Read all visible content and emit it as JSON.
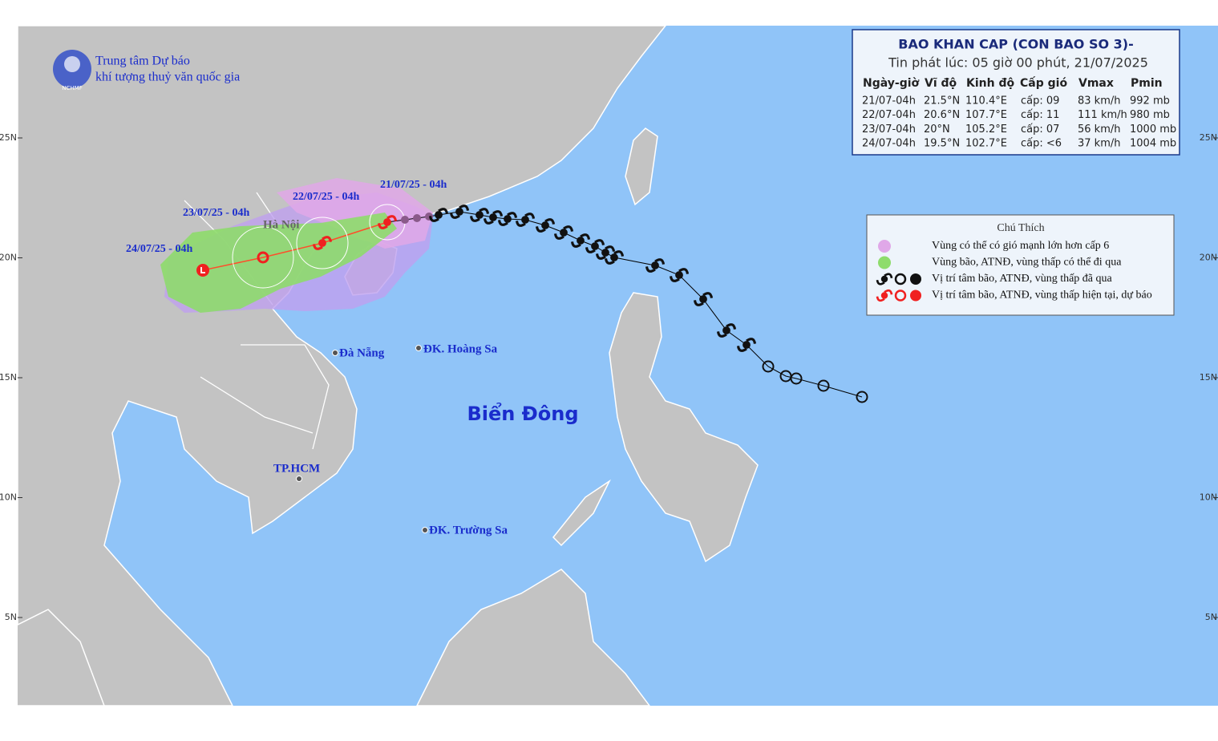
{
  "logo": {
    "line1": "Trung tâm Dự báo",
    "line2": "khí tượng thuỷ văn quốc gia",
    "abbr": "NCHMF"
  },
  "forecast_box": {
    "title": "BAO KHAN CAP (CON BAO SO 3)-",
    "issued": "Tin phát lúc: 05 giờ 00 phút, 21/07/2025",
    "headers": [
      "Ngày-giờ",
      "Vĩ độ",
      "Kinh độ",
      "Cấp gió",
      "Vmax",
      "Pmin"
    ],
    "rows": [
      [
        "21/07-04h",
        "21.5°N",
        "110.4°E",
        "cấp: 09",
        "83 km/h",
        "992 mb"
      ],
      [
        "22/07-04h",
        "20.6°N",
        "107.7°E",
        "cấp: 11",
        "111 km/h",
        "980 mb"
      ],
      [
        "23/07-04h",
        "20°N",
        "105.2°E",
        "cấp: 07",
        "56 km/h",
        "1000 mb"
      ],
      [
        "24/07-04h",
        "19.5°N",
        "102.7°E",
        "cấp: <6",
        "37 km/h",
        "1004 mb"
      ]
    ]
  },
  "legend": {
    "title": "Chú Thích",
    "items": [
      "Vùng có thể có gió mạnh lớn hơn cấp 6",
      "Vùng bão, ATNĐ, vùng thấp có thể đi qua",
      "Vị trí tâm bão, ATNĐ, vùng thấp đã qua",
      "Vị trí tâm bão, ATNĐ, vùng thấp hiện tại, dự báo"
    ]
  },
  "forecast_labels": [
    "21/07/25 - 04h",
    "22/07/25 - 04h",
    "23/07/25 - 04h",
    "24/07/25 - 04h"
  ],
  "places": [
    "Hà Nội",
    "Đà Nẵng",
    "ĐK. Hoàng Sa",
    "TP.HCM",
    "ĐK. Trường Sa"
  ],
  "sea_name": "Biển Đông",
  "lat_labels": [
    "25N",
    "20N",
    "15N",
    "10N",
    "5N"
  ]
}
